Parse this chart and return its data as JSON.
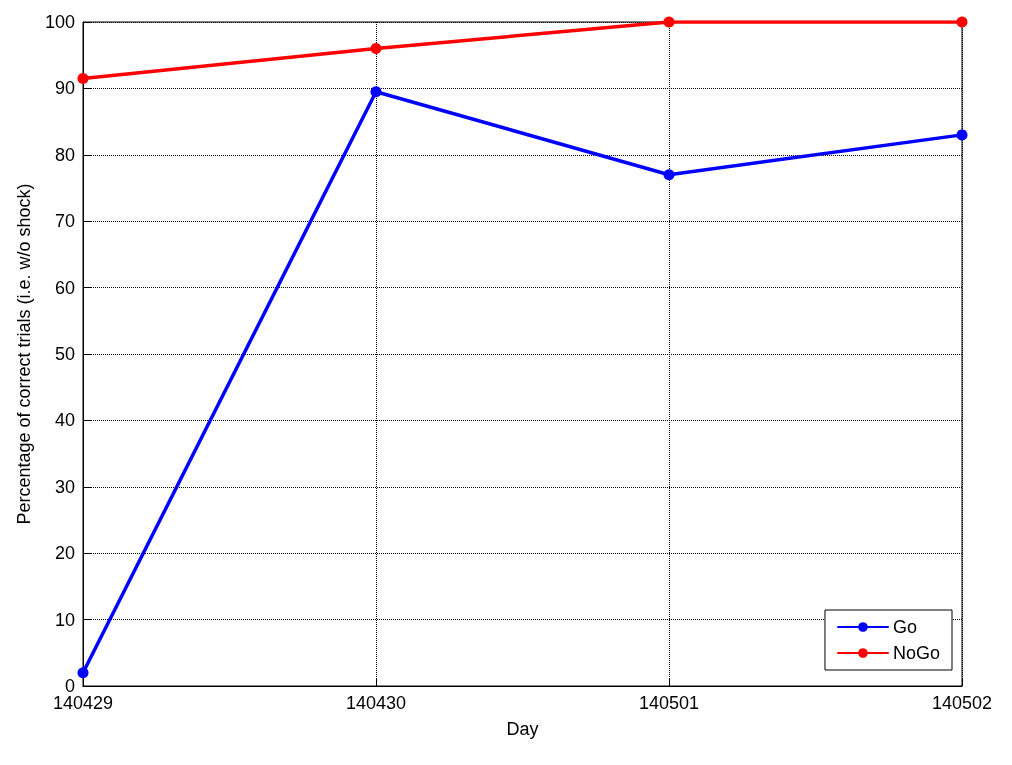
{
  "chart_data": {
    "type": "line",
    "xlabel": "Day",
    "ylabel": "Percentage of correct trials (i.e. w/o shock)",
    "categories": [
      "140429",
      "140430",
      "140501",
      "140502"
    ],
    "series": [
      {
        "name": "Go",
        "color": "#0000ff",
        "values": [
          2,
          89.5,
          77,
          83
        ]
      },
      {
        "name": "NoGo",
        "color": "#ff0000",
        "values": [
          91.5,
          96,
          100,
          100
        ]
      }
    ],
    "ylim": [
      0,
      100
    ],
    "yticks": [
      0,
      10,
      20,
      30,
      40,
      50,
      60,
      70,
      80,
      90,
      100
    ],
    "grid": true,
    "legend": "bottom right",
    "marker": "circle",
    "line_style": "solid"
  }
}
